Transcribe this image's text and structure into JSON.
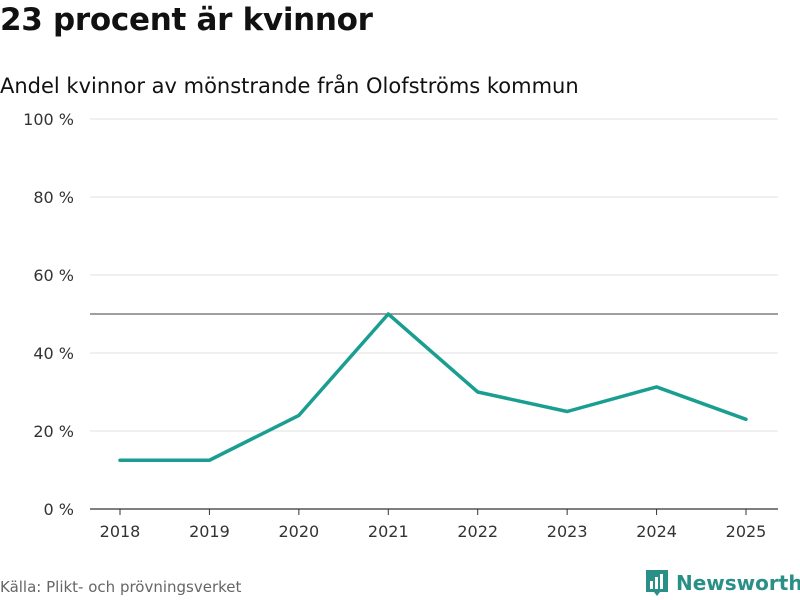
{
  "header": {
    "title": "23 procent är kvinnor",
    "subtitle": "Andel kvinnor av mönstrande från Olofströms kommun"
  },
  "footer": {
    "source": "Källa: Plikt- och prövningsverket",
    "brand": "Newsworthy"
  },
  "colors": {
    "line": "#1a9e91",
    "grid": "#e2e2e2",
    "axis": "#333333",
    "reference": "#666666",
    "brand": "#2a8f86"
  },
  "chart_data": {
    "type": "line",
    "title": "23 procent är kvinnor",
    "subtitle": "Andel kvinnor av mönstrande från Olofströms kommun",
    "xlabel": "",
    "ylabel": "",
    "categories": [
      "2018",
      "2019",
      "2020",
      "2021",
      "2022",
      "2023",
      "2024",
      "2025"
    ],
    "series": [
      {
        "name": "Andel kvinnor",
        "values": [
          12.5,
          12.5,
          24,
          50,
          30,
          25,
          31.3,
          23
        ]
      }
    ],
    "ylim": [
      0,
      100
    ],
    "yticks": [
      0,
      20,
      40,
      60,
      80,
      100
    ],
    "ytick_labels": [
      "0 %",
      "20 %",
      "40 %",
      "60 %",
      "80 %",
      "100 %"
    ],
    "reference_line": 50,
    "grid": true,
    "legend": "none"
  }
}
